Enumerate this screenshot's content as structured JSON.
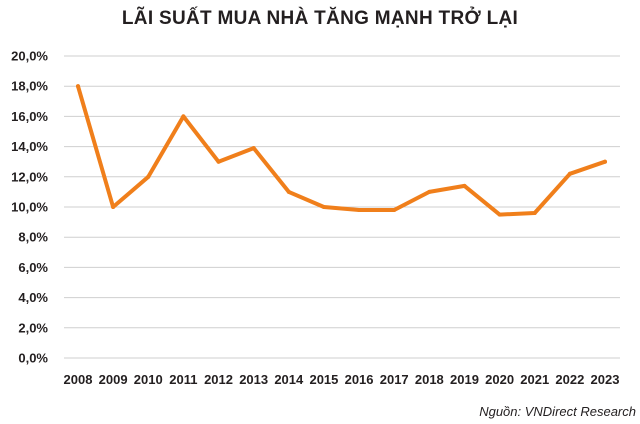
{
  "chart_data": {
    "type": "line",
    "title": "LÃI SUẤT MUA NHÀ TĂNG MẠNH TRỞ LẠI",
    "xlabel": "",
    "ylabel": "",
    "categories": [
      "2008",
      "2009",
      "2010",
      "2011",
      "2012",
      "2013",
      "2014",
      "2015",
      "2016",
      "2017",
      "2018",
      "2019",
      "2020",
      "2021",
      "2022",
      "2023"
    ],
    "series": [
      {
        "values": [
          18.0,
          10.0,
          12.0,
          16.0,
          13.0,
          13.9,
          11.0,
          10.0,
          9.8,
          9.8,
          11.0,
          11.4,
          9.5,
          9.6,
          12.2,
          13.0
        ]
      }
    ],
    "ylim": [
      0,
      20
    ],
    "yticks": [
      "0,0%",
      "2,0%",
      "4,0%",
      "6,0%",
      "8,0%",
      "10,0%",
      "12,0%",
      "14,0%",
      "16,0%",
      "18,0%",
      "20,0%"
    ],
    "grid": true,
    "legend": "none",
    "line_color": "#f07f1b",
    "source": "Nguồn: VNDirect Research"
  }
}
